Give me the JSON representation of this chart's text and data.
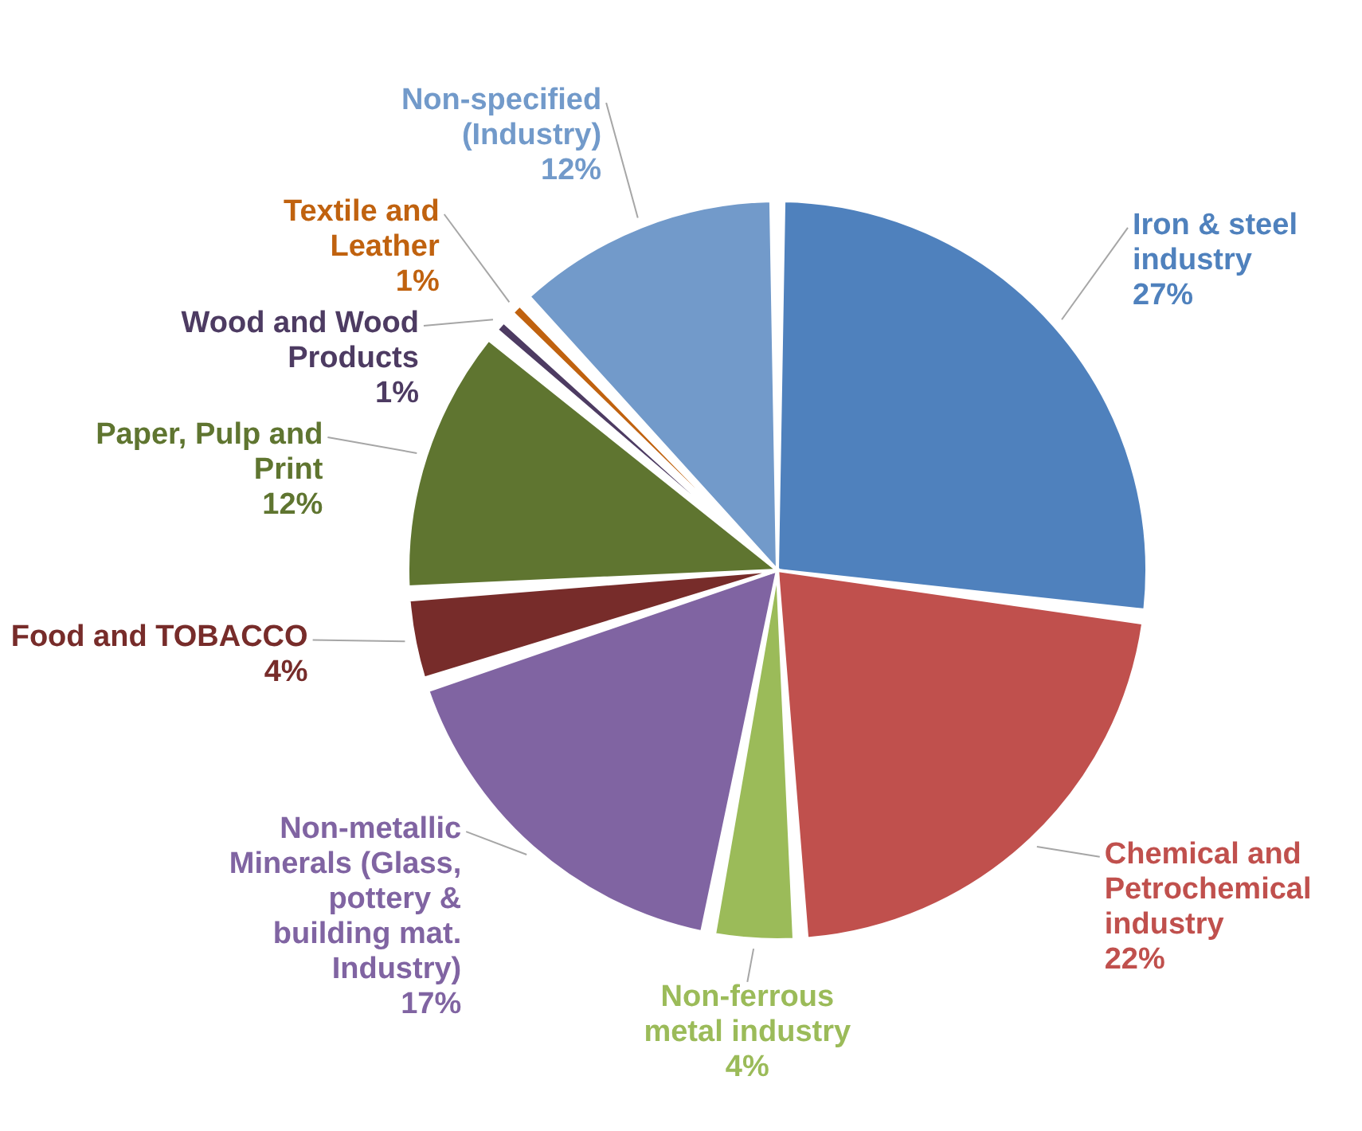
{
  "chart_data": {
    "type": "pie",
    "categories": [
      "Iron & steel industry",
      "Chemical and Petrochemical industry",
      "Non-ferrous metal industry",
      "Non-metallic Minerals (Glass, pottery & building mat. Industry)",
      "Food and TOBACCO",
      "Paper, Pulp and Print",
      "Wood and Wood Products",
      "Textile and Leather",
      "Non-specified (Industry)"
    ],
    "values": [
      27,
      22,
      4,
      17,
      4,
      12,
      1,
      1,
      12
    ],
    "value_labels": [
      "27%",
      "22%",
      "4%",
      "17%",
      "4%",
      "12%",
      "1%",
      "1%",
      "12%"
    ],
    "colors": [
      "#4f81bd",
      "#c0504d",
      "#9bbb59",
      "#8064a2",
      "#772c2a",
      "#5f7530",
      "#4d3b62",
      "#c0620f",
      "#729aca"
    ]
  }
}
